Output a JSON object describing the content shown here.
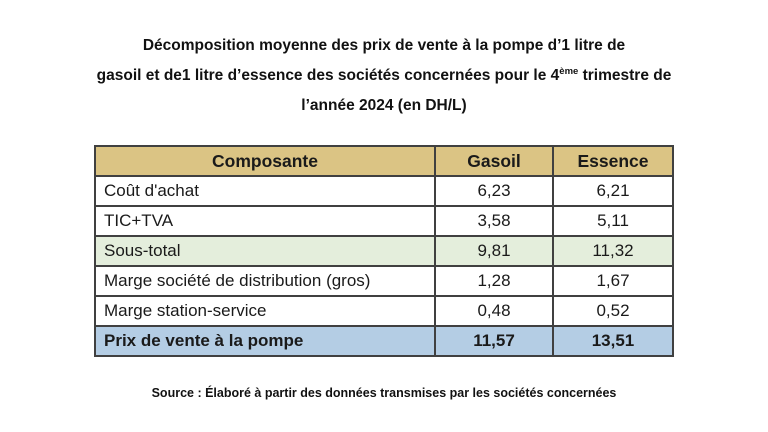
{
  "title": {
    "line1": "Décomposition moyenne des prix de vente à la pompe d’1 litre de",
    "line2_pre": "gasoil et de1 litre d’essence des sociétés concernées pour le 4",
    "line2_sup": "ème",
    "line2_post": " trimestre de",
    "line3": "l’année 2024 (en DH/L)"
  },
  "table": {
    "columns": [
      "Composante",
      "Gasoil",
      "Essence"
    ],
    "rows": [
      {
        "composante": "Coût d'achat",
        "gasoil": "6,23",
        "essence": "6,21",
        "highlight": "none",
        "bold": false
      },
      {
        "composante": "TIC+TVA",
        "gasoil": "3,58",
        "essence": "5,11",
        "highlight": "none",
        "bold": false
      },
      {
        "composante": "Sous-total",
        "gasoil": "9,81",
        "essence": "11,32",
        "highlight": "green",
        "bold": false
      },
      {
        "composante": "Marge société de distribution (gros)",
        "gasoil": "1,28",
        "essence": "1,67",
        "highlight": "none",
        "bold": false
      },
      {
        "composante": "Marge station-service",
        "gasoil": "0,48",
        "essence": "0,52",
        "highlight": "none",
        "bold": false
      },
      {
        "composante": "Prix de vente à la pompe",
        "gasoil": "11,57",
        "essence": "13,51",
        "highlight": "blue",
        "bold": true
      }
    ]
  },
  "source_note": "Source : Élaboré à partir des données transmises par les sociétés concernées",
  "colors": {
    "header_bg": "#DBC484",
    "subtotal_bg": "#E4EEDC",
    "total_bg": "#B4CDE4",
    "border": "#404040"
  }
}
